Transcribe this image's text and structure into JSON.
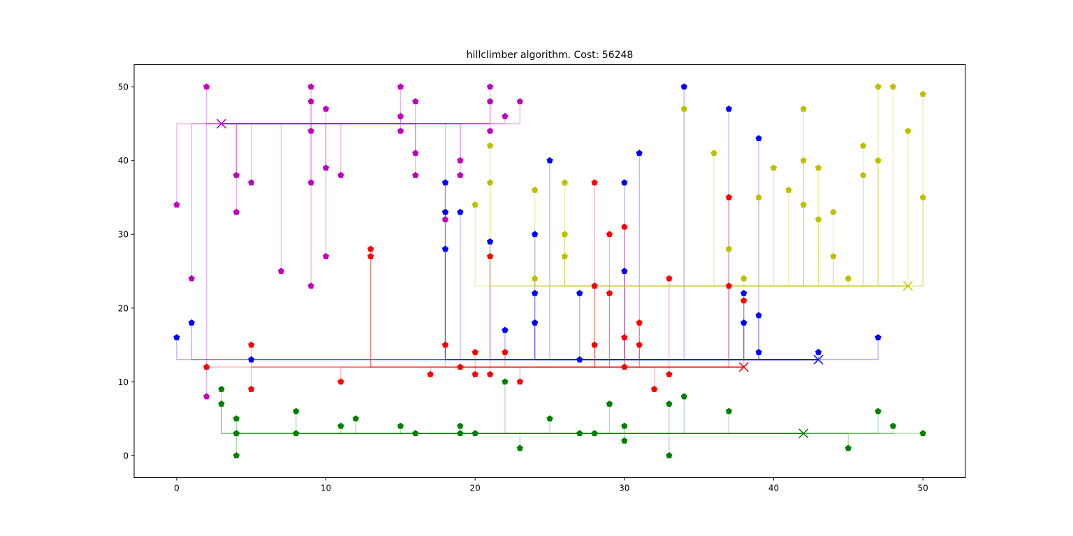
{
  "chart_data": {
    "type": "scatter",
    "title": "hillclimber algorithm. Cost: 56248",
    "xlabel": "",
    "ylabel": "",
    "xlim": [
      -2.85,
      52.85
    ],
    "ylim": [
      -3.0,
      53.0
    ],
    "xticks": [
      0,
      10,
      20,
      30,
      40,
      50
    ],
    "yticks": [
      0,
      10,
      20,
      30,
      40,
      50
    ],
    "grid": false,
    "legend": "none",
    "marker": "pentagon",
    "series": [
      {
        "color": "#bf00bf",
        "battery": [
          3,
          45
        ],
        "houses": [
          [
            0,
            34
          ],
          [
            1,
            24
          ],
          [
            2,
            50
          ],
          [
            2,
            8
          ],
          [
            4,
            38
          ],
          [
            4,
            33
          ],
          [
            5,
            37
          ],
          [
            7,
            25
          ],
          [
            9,
            50
          ],
          [
            9,
            48
          ],
          [
            9,
            44
          ],
          [
            9,
            37
          ],
          [
            9,
            23
          ],
          [
            10,
            47
          ],
          [
            10,
            39
          ],
          [
            10,
            27
          ],
          [
            11,
            38
          ],
          [
            15,
            50
          ],
          [
            15,
            46
          ],
          [
            15,
            44
          ],
          [
            16,
            48
          ],
          [
            16,
            41
          ],
          [
            16,
            38
          ],
          [
            18,
            32
          ],
          [
            19,
            40
          ],
          [
            19,
            38
          ],
          [
            21,
            50
          ],
          [
            21,
            48
          ],
          [
            21,
            44
          ],
          [
            22,
            46
          ],
          [
            23,
            48
          ]
        ]
      },
      {
        "color": "#0000ff",
        "battery": [
          43,
          13
        ],
        "houses": [
          [
            0,
            16
          ],
          [
            1,
            18
          ],
          [
            5,
            13
          ],
          [
            18,
            37
          ],
          [
            18,
            33
          ],
          [
            18,
            28
          ],
          [
            19,
            33
          ],
          [
            21,
            29
          ],
          [
            22,
            17
          ],
          [
            24,
            30
          ],
          [
            24,
            22
          ],
          [
            24,
            18
          ],
          [
            25,
            40
          ],
          [
            27,
            22
          ],
          [
            27,
            13
          ],
          [
            30,
            37
          ],
          [
            30,
            25
          ],
          [
            31,
            41
          ],
          [
            34,
            50
          ],
          [
            37,
            47
          ],
          [
            38,
            22
          ],
          [
            38,
            18
          ],
          [
            39,
            43
          ],
          [
            39,
            19
          ],
          [
            39,
            14
          ],
          [
            43,
            14
          ],
          [
            47,
            16
          ]
        ]
      },
      {
        "color": "#ff0000",
        "battery": [
          38,
          12
        ],
        "houses": [
          [
            2,
            12
          ],
          [
            5,
            15
          ],
          [
            5,
            9
          ],
          [
            11,
            10
          ],
          [
            13,
            28
          ],
          [
            13,
            27
          ],
          [
            17,
            11
          ],
          [
            18,
            15
          ],
          [
            19,
            12
          ],
          [
            20,
            14
          ],
          [
            20,
            11
          ],
          [
            21,
            27
          ],
          [
            21,
            11
          ],
          [
            22,
            14
          ],
          [
            23,
            10
          ],
          [
            28,
            37
          ],
          [
            28,
            23
          ],
          [
            28,
            15
          ],
          [
            29,
            30
          ],
          [
            29,
            22
          ],
          [
            30,
            31
          ],
          [
            30,
            16
          ],
          [
            30,
            12
          ],
          [
            31,
            18
          ],
          [
            31,
            15
          ],
          [
            32,
            9
          ],
          [
            33,
            24
          ],
          [
            33,
            11
          ],
          [
            37,
            35
          ],
          [
            37,
            23
          ],
          [
            38,
            21
          ]
        ]
      },
      {
        "color": "#008000",
        "battery": [
          42,
          3
        ],
        "houses": [
          [
            3,
            9
          ],
          [
            3,
            7
          ],
          [
            4,
            5
          ],
          [
            4,
            3
          ],
          [
            4,
            0
          ],
          [
            8,
            6
          ],
          [
            8,
            3
          ],
          [
            11,
            4
          ],
          [
            12,
            5
          ],
          [
            15,
            4
          ],
          [
            16,
            3
          ],
          [
            19,
            4
          ],
          [
            19,
            3
          ],
          [
            20,
            3
          ],
          [
            22,
            10
          ],
          [
            23,
            1
          ],
          [
            25,
            5
          ],
          [
            27,
            3
          ],
          [
            28,
            3
          ],
          [
            29,
            7
          ],
          [
            30,
            4
          ],
          [
            30,
            2
          ],
          [
            33,
            7
          ],
          [
            33,
            0
          ],
          [
            34,
            8
          ],
          [
            37,
            6
          ],
          [
            45,
            1
          ],
          [
            47,
            6
          ],
          [
            48,
            4
          ],
          [
            50,
            3
          ]
        ]
      },
      {
        "color": "#bfbf00",
        "battery": [
          49,
          23
        ],
        "houses": [
          [
            20,
            34
          ],
          [
            21,
            42
          ],
          [
            21,
            37
          ],
          [
            24,
            36
          ],
          [
            24,
            24
          ],
          [
            26,
            37
          ],
          [
            26,
            30
          ],
          [
            26,
            27
          ],
          [
            34,
            47
          ],
          [
            36,
            41
          ],
          [
            37,
            28
          ],
          [
            38,
            24
          ],
          [
            39,
            35
          ],
          [
            40,
            39
          ],
          [
            41,
            36
          ],
          [
            42,
            47
          ],
          [
            42,
            40
          ],
          [
            42,
            34
          ],
          [
            43,
            39
          ],
          [
            43,
            32
          ],
          [
            44,
            33
          ],
          [
            44,
            27
          ],
          [
            45,
            24
          ],
          [
            46,
            42
          ],
          [
            46,
            38
          ],
          [
            47,
            50
          ],
          [
            47,
            40
          ],
          [
            48,
            50
          ],
          [
            49,
            44
          ],
          [
            50,
            49
          ],
          [
            50,
            35
          ]
        ]
      }
    ]
  }
}
